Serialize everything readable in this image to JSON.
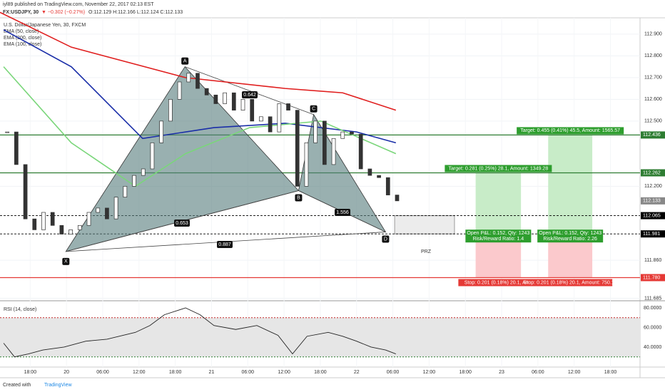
{
  "header": {
    "publisher": "iyl89 published on TradingView.com, November 22, 2017 02:13 EST",
    "symbol": "FX:USDJPY, 30",
    "change": "▼ −0.302 (−0.27%)",
    "ohlc": "O:112.129 H:112.166 L:112.124 C:112.133"
  },
  "footer": {
    "created": "Created with",
    "brand": "TradingView"
  },
  "chart_data": {
    "type": "candlestick",
    "legend": [
      "U.S. Dollar/Japanese Yen, 30, FXCM",
      "EMA (50, close)",
      "EMA (200, close)",
      "EMA (100, close)"
    ],
    "up_color": "#ffffff",
    "down_color": "#333333",
    "xlim": [
      0,
      105.9
    ],
    "ylim": [
      111.68,
      112.975
    ],
    "xticks": [
      {
        "value": 5,
        "label": "18:00"
      },
      {
        "value": 11,
        "label": "20"
      },
      {
        "value": 17,
        "label": "06:00"
      },
      {
        "value": 23,
        "label": "12:00"
      },
      {
        "value": 29,
        "label": "18:00"
      },
      {
        "value": 35,
        "label": "21"
      },
      {
        "value": 41,
        "label": "06:00"
      },
      {
        "value": 47,
        "label": "12:00"
      },
      {
        "value": 53,
        "label": "18:00"
      },
      {
        "value": 59,
        "label": "22"
      },
      {
        "value": 65,
        "label": "06:00"
      },
      {
        "value": 71,
        "label": "12:00"
      },
      {
        "value": 77,
        "label": "18:00"
      },
      {
        "value": 83,
        "label": "23"
      },
      {
        "value": 89,
        "label": "06:00"
      },
      {
        "value": 95,
        "label": "12:00"
      },
      {
        "value": 101,
        "label": "18:00"
      }
    ],
    "yticks": [
      {
        "value": 112.9,
        "label": "112.900"
      },
      {
        "value": 112.8,
        "label": "112.800"
      },
      {
        "value": 112.7,
        "label": "112.700"
      },
      {
        "value": 112.6,
        "label": "112.600"
      },
      {
        "value": 112.5,
        "label": "112.500"
      },
      {
        "value": 112.2,
        "label": "112.200"
      },
      {
        "value": 111.86,
        "label": "111.860"
      },
      {
        "value": 111.685,
        "label": "111.685"
      }
    ],
    "x": [
      1.2,
      2.7,
      4.2,
      5.7,
      7.2,
      8.7,
      10.2,
      11.7,
      13.2,
      14.7,
      16.2,
      17.7,
      19.2,
      20.7,
      22.2,
      23.7,
      25.2,
      26.7,
      28.2,
      29.7,
      31.2,
      32.7,
      34.2,
      35.7,
      37.2,
      38.7,
      40.2,
      41.7,
      43.2,
      44.7,
      46.2,
      47.7,
      49.2,
      50.7,
      52.2,
      53.7,
      55.2,
      56.7,
      58.2,
      59.7,
      61.2,
      62.7,
      64.2,
      65.7
    ],
    "values": [
      112.45,
      112.3,
      112.05,
      112.0,
      112.08,
      112.02,
      111.98,
      112.0,
      112.02,
      112.08,
      112.1,
      112.05,
      112.15,
      112.2,
      112.25,
      112.28,
      112.4,
      112.5,
      112.6,
      112.68,
      112.72,
      112.65,
      112.62,
      112.58,
      112.63,
      112.55,
      112.6,
      112.5,
      112.52,
      112.45,
      112.58,
      112.55,
      112.2,
      112.4,
      112.5,
      112.3,
      112.42,
      112.45,
      112.44,
      112.28,
      112.25,
      112.24,
      112.16,
      112.133
    ],
    "series": [
      {
        "name": "EMA (200, close)",
        "color": "#e01e1e",
        "x": [
          0,
          11.8,
          30.7,
          47.2,
          56.7,
          65.5
        ],
        "values": [
          113.0,
          112.84,
          112.7,
          112.65,
          112.63,
          112.55
        ]
      },
      {
        "name": "EMA (100, close)",
        "color": "#1a2ea8",
        "x": [
          0.6,
          11.8,
          23.6,
          35.4,
          47.2,
          59.0,
          65.5
        ],
        "values": [
          112.92,
          112.75,
          112.42,
          112.47,
          112.49,
          112.45,
          112.4
        ]
      },
      {
        "name": "EMA (50, close)",
        "color": "#7ad67a",
        "x": [
          0.6,
          11.8,
          22.4,
          30.7,
          41.3,
          53.1,
          65.5
        ],
        "values": [
          112.75,
          112.4,
          112.2,
          112.35,
          112.47,
          112.5,
          112.35
        ]
      }
    ],
    "pattern": {
      "points": [
        {
          "label": "X",
          "x": 10.9,
          "price": 111.9
        },
        {
          "label": "A",
          "x": 30.6,
          "price": 112.75
        },
        {
          "label": "B",
          "x": 49.4,
          "price": 112.18
        },
        {
          "label": "C",
          "x": 51.9,
          "price": 112.53
        },
        {
          "label": "D",
          "x": 63.8,
          "price": 111.99
        }
      ],
      "ratios": [
        "0.642",
        "0.653",
        "1.556",
        "0.887"
      ]
    },
    "prz": {
      "label": "PRZ",
      "high": 112.065,
      "low": 111.981,
      "x": [
        65.3,
        75.2
      ]
    },
    "levels": [
      {
        "value": 112.436,
        "color": "#2e7d32"
      },
      {
        "value": 112.262,
        "color": "#2e7d32"
      },
      {
        "value": 112.133,
        "color": "#888888"
      },
      {
        "value": 112.065,
        "color": "#000000"
      },
      {
        "value": 111.981,
        "color": "#000000"
      },
      {
        "value": {
          "value": 111.78,
          "label": "111.780"
        },
        "color": "#e53935"
      }
    ],
    "positions": [
      {
        "x": [
          78.7,
          86.2
        ],
        "entry": 111.981,
        "target": 112.262,
        "stop": 111.78,
        "target_label": "Target: 0.281 (0.25%) 28.1, Amount: 1349.28",
        "open_label": "Open P&L: 0.152, Qty: 1243",
        "rr_label": "Risk/Reward Ratio: 1.4",
        "stop_label": "Stop: 0.201 (0.18%) 20.1, Amc"
      },
      {
        "x": [
          90.7,
          98.0
        ],
        "entry": 111.981,
        "target": 112.436,
        "stop": 111.78,
        "target_label": "Target: 0.455 (0.41%) 45.5, Amount: 1565.57",
        "open_label": "Open P&L: 0.152, Qty: 1243",
        "rr_label": "Risk/Reward Ratio: 2.26",
        "stop_label": "Stop: 0.201 (0.18%) 20.1, Amount: 750.16"
      }
    ],
    "rsi": {
      "name": "RSI (14, close)",
      "color": "#222222",
      "ylim": [
        19.6,
        85.1
      ],
      "bands": [
        30,
        70
      ],
      "yticks": [
        {
          "value": 80,
          "label": "80.0000"
        },
        {
          "value": 60,
          "label": "60.0000"
        },
        {
          "value": 40,
          "label": "40.0000"
        }
      ],
      "x": [
        0.6,
        2.4,
        4.7,
        7.1,
        10.6,
        14.2,
        17.7,
        22.4,
        24.8,
        27.2,
        30.7,
        33.1,
        35.4,
        39.0,
        42.5,
        46.0,
        48.4,
        50.8,
        54.3,
        56.7,
        59.0,
        61.4,
        63.8,
        65.5
      ],
      "values": [
        44,
        30,
        33,
        37,
        40,
        46,
        48,
        55,
        62,
        73,
        80,
        73,
        62,
        58,
        62,
        52,
        33,
        51,
        55,
        51,
        46,
        40,
        37,
        33
      ]
    }
  }
}
